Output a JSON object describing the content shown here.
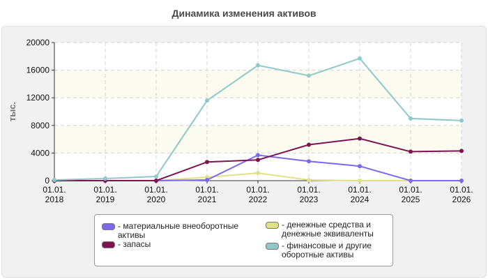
{
  "chart_data": {
    "type": "line",
    "title": "Динамика изменения активов",
    "ylabel": "тыс.",
    "ylim": [
      0,
      20000
    ],
    "yticks": [
      "0",
      "4000",
      "8000",
      "12000",
      "16000",
      "20000"
    ],
    "categories": [
      "01.01.\n2018",
      "01.01.\n2019",
      "01.01.\n2020",
      "01.01.\n2021",
      "01.01.\n2022",
      "01.01.\n2023",
      "01.01.\n2024",
      "01.01.\n2025",
      "01.01.\n2026"
    ],
    "grid": true,
    "legend_position": "bottom",
    "series": [
      {
        "name": "- материальные внеоборотные\nактивы",
        "color": "#7b68ee",
        "values": [
          0,
          0,
          0,
          100,
          3700,
          2800,
          2100,
          0,
          0
        ]
      },
      {
        "name": "- запасы",
        "color": "#7b1450",
        "values": [
          0,
          0,
          0,
          2700,
          3000,
          5200,
          6100,
          4200,
          4300
        ]
      },
      {
        "name": "- денежные средства и\nденежные эквиваленты",
        "color": "#e0e08a",
        "values": [
          0,
          0,
          0,
          500,
          1100,
          100,
          0,
          0,
          0
        ]
      },
      {
        "name": "- финансовые и другие\nоборотные активы",
        "color": "#8ec8c8",
        "values": [
          100,
          300,
          600,
          11600,
          16700,
          15200,
          17700,
          9000,
          8700
        ]
      }
    ]
  }
}
